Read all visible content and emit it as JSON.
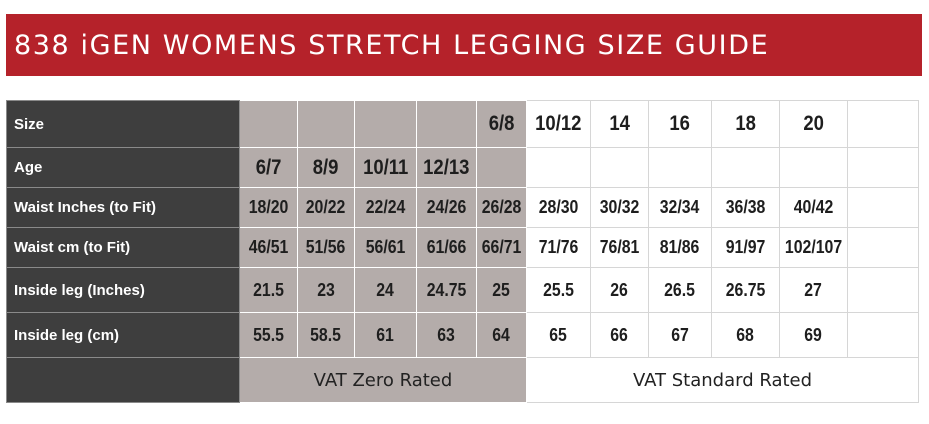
{
  "title": "838 iGEN WOMENS STRETCH LEGGING SIZE GUIDE",
  "colors": {
    "banner": "#b5222a",
    "label_bg": "#3e3e3e",
    "zero_rated_bg": "#b4acaa",
    "standard_bg": "#ffffff"
  },
  "rows": [
    {
      "label": "Size",
      "cells": [
        "",
        "",
        "",
        "",
        "6/8",
        "10/12",
        "14",
        "16",
        "18",
        "20",
        ""
      ]
    },
    {
      "label": "Age",
      "cells": [
        "6/7",
        "8/9",
        "10/11",
        "12/13",
        "",
        "",
        "",
        "",
        "",
        "",
        ""
      ]
    },
    {
      "label": "Waist Inches (to Fit)",
      "cells": [
        "18/20",
        "20/22",
        "22/24",
        "24/26",
        "26/28",
        "28/30",
        "30/32",
        "32/34",
        "36/38",
        "40/42",
        ""
      ]
    },
    {
      "label": "Waist cm (to Fit)",
      "cells": [
        "46/51",
        "51/56",
        "56/61",
        "61/66",
        "66/71",
        "71/76",
        "76/81",
        "81/86",
        "91/97",
        "102/107",
        ""
      ]
    },
    {
      "label": "Inside leg (Inches)",
      "cells": [
        "21.5",
        "23",
        "24",
        "24.75",
        "25",
        "25.5",
        "26",
        "26.5",
        "26.75",
        "27",
        ""
      ]
    },
    {
      "label": "Inside leg (cm)",
      "cells": [
        "55.5",
        "58.5",
        "61",
        "63",
        "64",
        "65",
        "66",
        "67",
        "68",
        "69",
        ""
      ]
    }
  ],
  "footer": {
    "zero_rated": "VAT Zero Rated",
    "standard_rated": "VAT Standard Rated"
  }
}
